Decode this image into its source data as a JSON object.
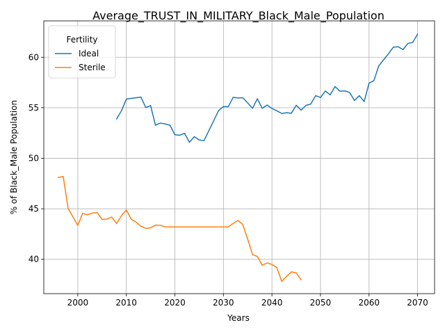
{
  "chart_data": {
    "type": "line",
    "title": "Average_TRUST_IN_MILITARY_Black_Male_Population",
    "xlabel": "Years",
    "ylabel": "% of Black_Male Population",
    "xlim": [
      1993,
      2073.5
    ],
    "ylim": [
      36.6,
      63.6
    ],
    "xticks": [
      2000,
      2010,
      2020,
      2030,
      2040,
      2050,
      2060,
      2070
    ],
    "yticks": [
      40,
      45,
      50,
      55,
      60
    ],
    "grid": true,
    "legend": {
      "title": "Fertility",
      "placement": "top-left"
    },
    "series": [
      {
        "name": "Ideal",
        "color": "#1f77b4",
        "x": [
          2008,
          2009,
          2010,
          2011,
          2012,
          2013,
          2014,
          2015,
          2016,
          2017,
          2018,
          2019,
          2020,
          2021,
          2022,
          2023,
          2024,
          2025,
          2026,
          2027,
          2028,
          2029,
          2030,
          2031,
          2032,
          2033,
          2034,
          2035,
          2036,
          2037,
          2038,
          2039,
          2040,
          2041,
          2042,
          2043,
          2044,
          2045,
          2046,
          2047,
          2048,
          2049,
          2050,
          2051,
          2052,
          2053,
          2054,
          2055,
          2056,
          2057,
          2058,
          2059,
          2060,
          2061,
          2062,
          2063,
          2064,
          2065,
          2066,
          2067,
          2068,
          2069,
          2070
        ],
        "values": [
          53.9,
          54.7,
          55.85,
          55.93,
          55.99,
          56.06,
          55.02,
          55.22,
          53.27,
          53.48,
          53.4,
          53.27,
          52.33,
          52.28,
          52.47,
          51.58,
          52.14,
          51.81,
          51.74,
          52.73,
          53.72,
          54.71,
          55.12,
          55.1,
          56.03,
          55.97,
          55.99,
          55.48,
          54.95,
          55.89,
          54.94,
          55.27,
          54.93,
          54.7,
          54.44,
          54.51,
          54.46,
          55.25,
          54.77,
          55.23,
          55.37,
          56.2,
          56.02,
          56.66,
          56.27,
          57.1,
          56.64,
          56.67,
          56.51,
          55.72,
          56.2,
          55.61,
          57.44,
          57.68,
          59.14,
          59.75,
          60.34,
          60.99,
          61.04,
          60.76,
          61.36,
          61.47,
          62.28
        ]
      },
      {
        "name": "Sterile",
        "color": "#ff7f0e",
        "x": [
          1996,
          1997,
          1998,
          1999,
          2000,
          2001,
          2002,
          2003,
          2004,
          2005,
          2006,
          2007,
          2008,
          2009,
          2010,
          2011,
          2012,
          2013,
          2014,
          2015,
          2016,
          2017,
          2018,
          2019,
          2020,
          2021,
          2022,
          2023,
          2024,
          2025,
          2026,
          2027,
          2028,
          2029,
          2030,
          2031,
          2032,
          2033,
          2034,
          2035,
          2036,
          2037,
          2038,
          2039,
          2040,
          2041,
          2042,
          2043,
          2044,
          2045,
          2046
        ],
        "values": [
          48.1,
          48.2,
          45.05,
          44.2,
          43.35,
          44.55,
          44.4,
          44.58,
          44.62,
          43.95,
          43.98,
          44.18,
          43.53,
          44.32,
          44.88,
          43.98,
          43.67,
          43.27,
          43.06,
          43.12,
          43.38,
          43.37,
          43.2,
          43.2,
          43.2,
          43.2,
          43.2,
          43.2,
          43.2,
          43.2,
          43.2,
          43.2,
          43.2,
          43.2,
          43.2,
          43.2,
          43.55,
          43.84,
          43.43,
          42.0,
          40.46,
          40.28,
          39.4,
          39.64,
          39.49,
          39.18,
          37.82,
          38.3,
          38.75,
          38.66,
          37.97
        ]
      }
    ]
  }
}
